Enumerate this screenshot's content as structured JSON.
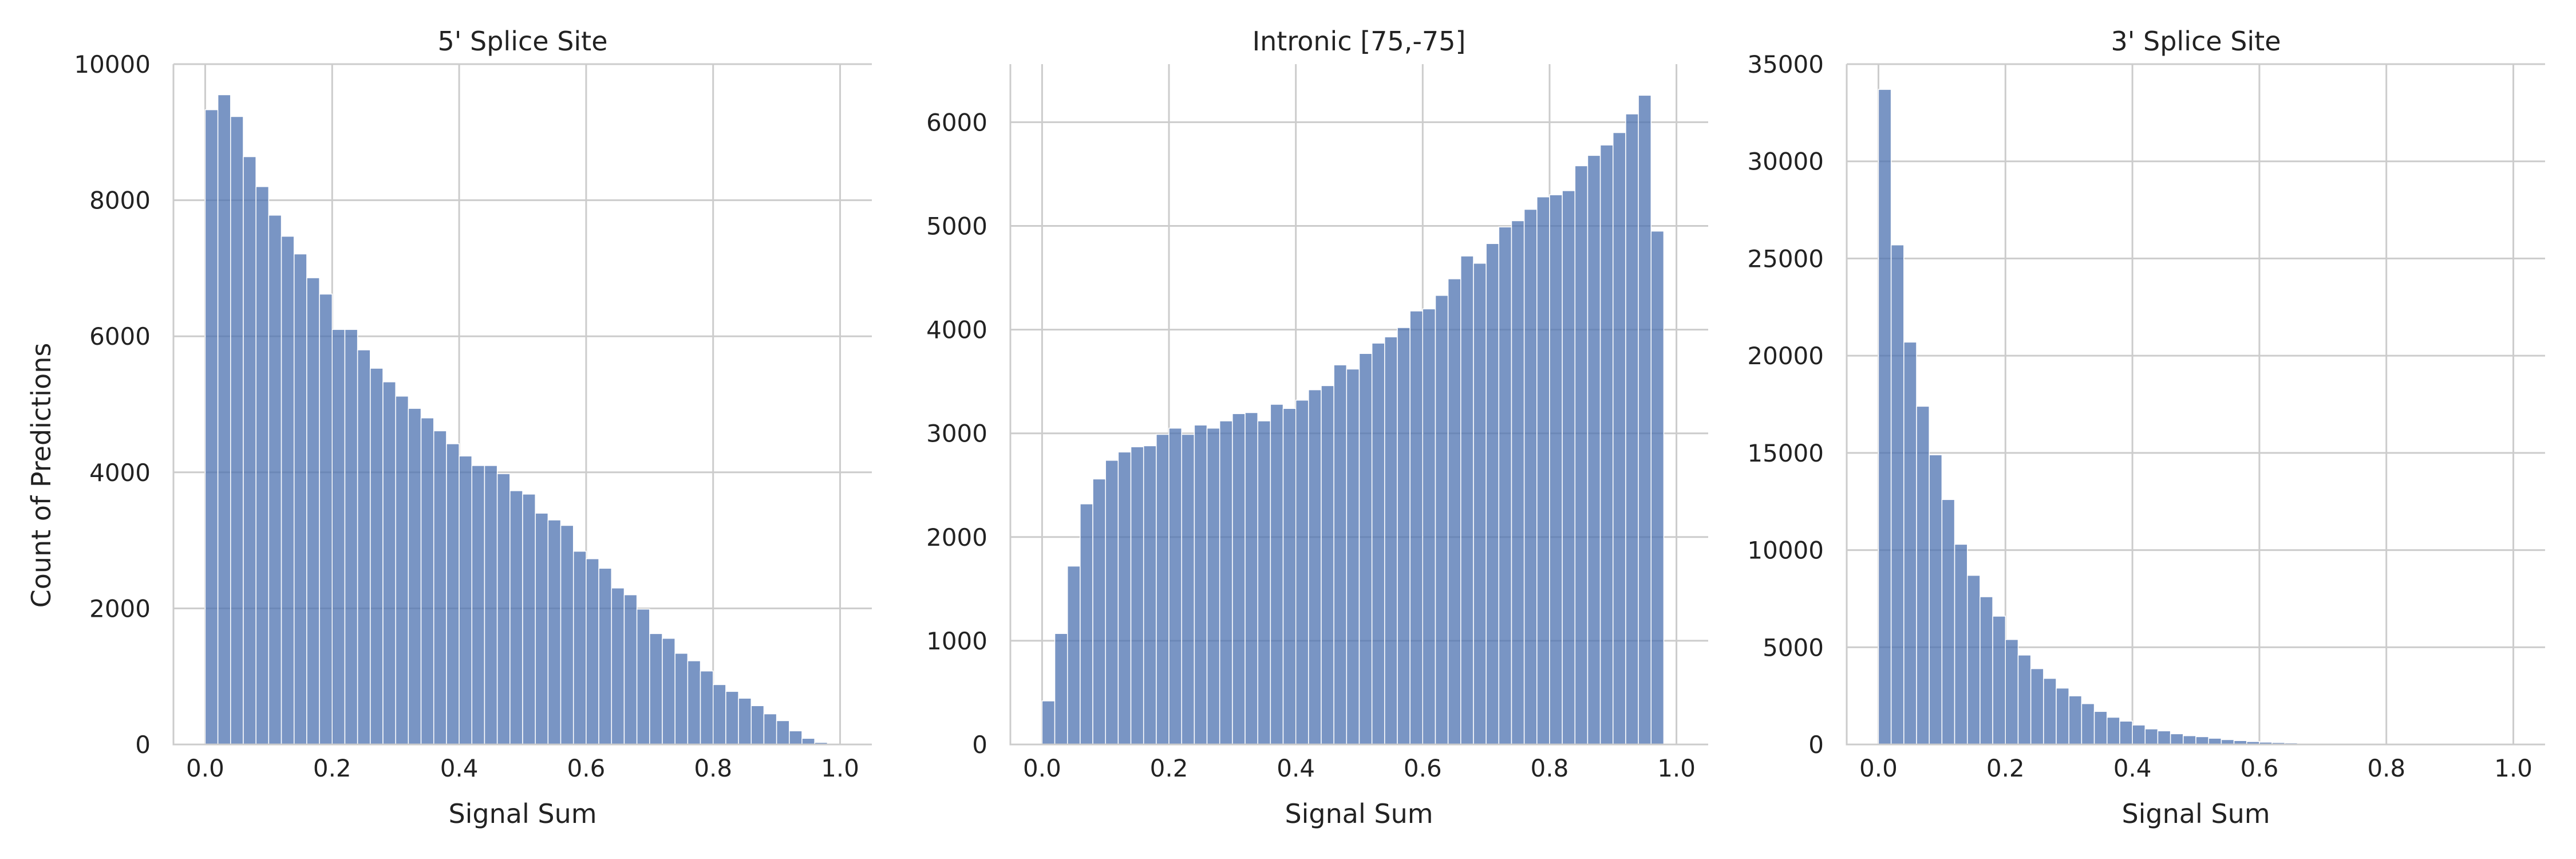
{
  "figure": {
    "bar_color": "#4c72b0",
    "bar_alpha": 0.75,
    "grid_color": "#cccccc",
    "background": "#ffffff"
  },
  "chart_data": [
    {
      "type": "bar",
      "title": "5' Splice Site",
      "xlabel": "Signal Sum",
      "ylabel": "Count of Predictions",
      "xlim": [
        -0.05,
        1.05
      ],
      "ylim": [
        0,
        10000
      ],
      "xticks": [
        0.0,
        0.2,
        0.4,
        0.6,
        0.8,
        1.0
      ],
      "xtick_labels": [
        "0.0",
        "0.2",
        "0.4",
        "0.6",
        "0.8",
        "1.0"
      ],
      "yticks": [
        0,
        2000,
        4000,
        6000,
        8000,
        10000
      ],
      "ytick_labels": [
        "0",
        "2000",
        "4000",
        "6000",
        "8000",
        "10000"
      ],
      "bin_width": 0.02,
      "bin_start": 0.0,
      "values": [
        9330,
        9550,
        9230,
        8640,
        8200,
        7780,
        7470,
        7210,
        6860,
        6620,
        6100,
        6100,
        5800,
        5530,
        5330,
        5120,
        4940,
        4800,
        4610,
        4420,
        4240,
        4100,
        4100,
        3980,
        3730,
        3680,
        3400,
        3300,
        3220,
        2840,
        2730,
        2590,
        2300,
        2200,
        1990,
        1630,
        1560,
        1340,
        1230,
        1080,
        880,
        780,
        680,
        570,
        450,
        350,
        200,
        90,
        30,
        0
      ]
    },
    {
      "type": "bar",
      "title": "Intronic [75,-75]",
      "xlabel": "Signal Sum",
      "ylabel": "",
      "xlim": [
        -0.05,
        1.05
      ],
      "ylim": [
        0,
        6560
      ],
      "xticks": [
        0.0,
        0.2,
        0.4,
        0.6,
        0.8,
        1.0
      ],
      "xtick_labels": [
        "0.0",
        "0.2",
        "0.4",
        "0.6",
        "0.8",
        "1.0"
      ],
      "yticks": [
        0,
        1000,
        2000,
        3000,
        4000,
        5000,
        6000
      ],
      "ytick_labels": [
        "0",
        "1000",
        "2000",
        "3000",
        "4000",
        "5000",
        "6000"
      ],
      "bin_width": 0.02,
      "bin_start": 0.0,
      "values": [
        420,
        1070,
        1720,
        2320,
        2560,
        2740,
        2820,
        2870,
        2880,
        2990,
        3050,
        2990,
        3080,
        3050,
        3120,
        3190,
        3200,
        3120,
        3280,
        3240,
        3320,
        3420,
        3460,
        3660,
        3620,
        3770,
        3870,
        3930,
        4020,
        4180,
        4200,
        4330,
        4490,
        4710,
        4640,
        4830,
        4990,
        5050,
        5160,
        5280,
        5300,
        5340,
        5580,
        5680,
        5780,
        5900,
        6080,
        6260,
        4950
      ]
    },
    {
      "type": "bar",
      "title": "3' Splice Site",
      "xlabel": "Signal Sum",
      "ylabel": "",
      "xlim": [
        -0.05,
        1.05
      ],
      "ylim": [
        0,
        35000
      ],
      "xticks": [
        0.0,
        0.2,
        0.4,
        0.6,
        0.8,
        1.0
      ],
      "xtick_labels": [
        "0.0",
        "0.2",
        "0.4",
        "0.6",
        "0.8",
        "1.0"
      ],
      "yticks": [
        0,
        5000,
        10000,
        15000,
        20000,
        25000,
        30000,
        35000
      ],
      "ytick_labels": [
        "0",
        "5000",
        "10000",
        "15000",
        "20000",
        "25000",
        "30000",
        "35000"
      ],
      "bin_width": 0.02,
      "bin_start": 0.0,
      "values": [
        33700,
        25700,
        20700,
        17400,
        14900,
        12600,
        10300,
        8700,
        7600,
        6600,
        5400,
        4600,
        3900,
        3400,
        2900,
        2500,
        2100,
        1700,
        1400,
        1200,
        1000,
        800,
        700,
        550,
        450,
        400,
        320,
        250,
        200,
        150,
        120,
        100,
        80,
        60,
        50,
        40,
        30,
        20,
        15,
        10,
        8,
        6,
        5,
        4,
        3,
        2,
        2,
        1,
        1,
        1
      ]
    }
  ]
}
